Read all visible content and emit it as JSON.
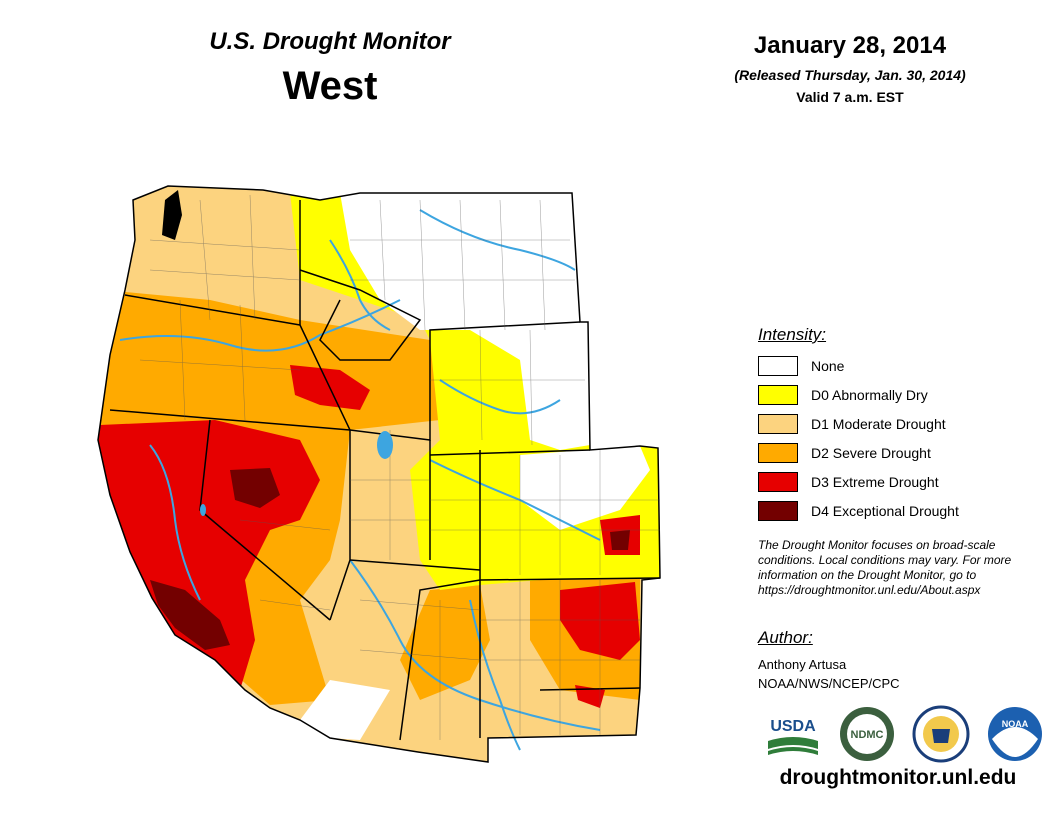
{
  "header": {
    "product": "U.S. Drought Monitor",
    "region": "West",
    "date": "January 28, 2014",
    "released": "(Released Thursday, Jan. 30, 2014)",
    "valid": "Valid 7 a.m. EST"
  },
  "legend": {
    "title": "Intensity:",
    "items": [
      {
        "label": "None",
        "color": "#ffffff"
      },
      {
        "label": "D0 Abnormally Dry",
        "color": "#ffff00"
      },
      {
        "label": "D1 Moderate Drought",
        "color": "#fcd37f"
      },
      {
        "label": "D2 Severe Drought",
        "color": "#ffaa00"
      },
      {
        "label": "D3 Extreme Drought",
        "color": "#e60000"
      },
      {
        "label": "D4 Exceptional Drought",
        "color": "#730000"
      }
    ]
  },
  "note": "The Drought Monitor focuses on broad-scale conditions. Local conditions may vary. For more information on the Drought Monitor, go to https://droughtmonitor.unl.edu/About.aspx",
  "author": {
    "heading": "Author:",
    "name": "Anthony Artusa",
    "org": "NOAA/NWS/NCEP/CPC"
  },
  "logos": [
    {
      "text": "USDA",
      "icon": "usda-logo"
    },
    {
      "text": "NDMC",
      "icon": "ndmc-logo"
    },
    {
      "text": "",
      "icon": "commerce-seal"
    },
    {
      "text": "NOAA",
      "icon": "noaa-logo"
    }
  ],
  "website": "droughtmonitor.unl.edu"
}
